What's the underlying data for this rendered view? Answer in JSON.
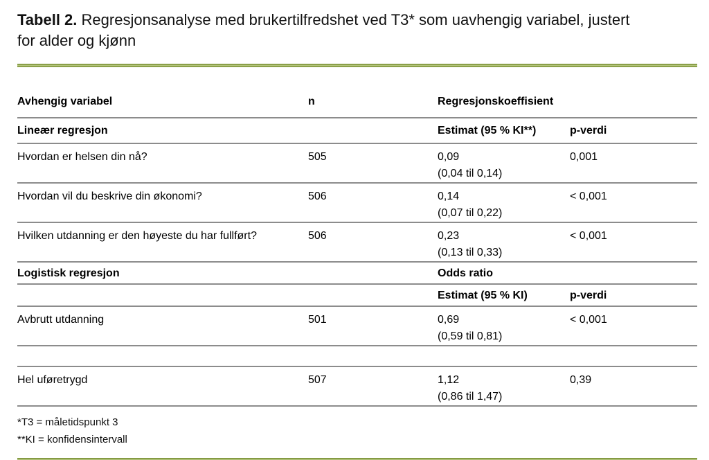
{
  "document": {
    "title_bold": "Tabell 2.",
    "title_rest": "Regresjonsanalyse med brukertilfredshet ved T3* som uavhengig variabel, justert for alder og kjønn",
    "accent_color": "#8CA23E",
    "divider_color": "#8C8C8C"
  },
  "table": {
    "rows": [
      {
        "variable": "Avhengig variabel",
        "n": "n",
        "est": "Regresjonskoeffisient",
        "ci": "",
        "p": ""
      },
      {
        "variable": "Lineær regresjon",
        "n": "",
        "est": "Estimat (95 % KI**)",
        "ci": "",
        "p": "p-verdi"
      },
      {
        "variable": "Hvordan er helsen din nå?",
        "n": "505",
        "est": "0,09",
        "ci": "(0,04 til 0,14)",
        "p": "0,001"
      },
      {
        "variable": "Hvordan vil du beskrive din økonomi?",
        "n": "506",
        "est": "0,14",
        "ci": "(0,07 til 0,22)",
        "p": "< 0,001"
      },
      {
        "variable": "Hvilken utdanning er den høyeste du har fullført?",
        "n": "506",
        "est": "0,23",
        "ci": "(0,13 til 0,33)",
        "p": "< 0,001"
      },
      {
        "variable": "Logistisk regresjon",
        "n": "",
        "est": "Odds ratio",
        "ci": "",
        "p": ""
      },
      {
        "variable": "",
        "n": "",
        "est": "Estimat (95 % KI)",
        "ci": "",
        "p": "p-verdi"
      },
      {
        "variable": "Avbrutt utdanning",
        "n": "501",
        "est": "0,69",
        "ci": "(0,59 til 0,81)",
        "p": "< 0,001"
      },
      {
        "variable": "",
        "n": "",
        "est": "",
        "ci": "",
        "p": ""
      },
      {
        "variable": "Hel uføretrygd",
        "n": "507",
        "est": "1,12",
        "ci": "(0,86 til 1,47)",
        "p": "0,39"
      }
    ]
  },
  "footnotes": [
    "*T3 = måletidspunkt 3",
    "**KI = konfidensintervall"
  ]
}
